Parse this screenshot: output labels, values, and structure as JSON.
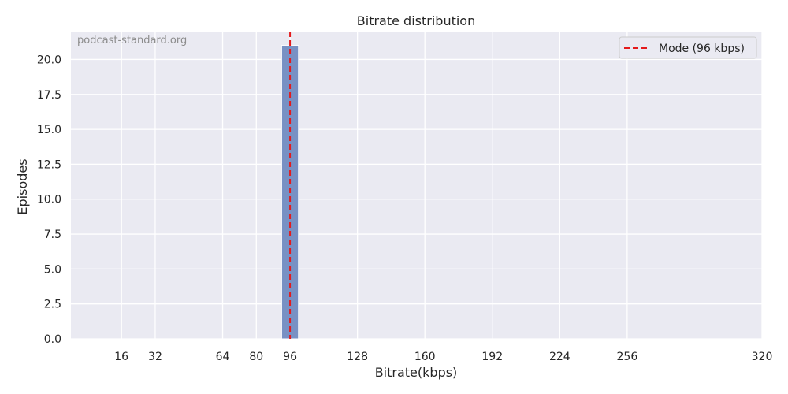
{
  "chart_data": {
    "type": "bar",
    "title": "Bitrate distribution",
    "xlabel": "Bitrate(kbps)",
    "ylabel": "Episodes",
    "watermark": "podcast-standard.org",
    "xlim": [
      -8,
      320
    ],
    "ylim": [
      0,
      22
    ],
    "xticks": [
      16,
      32,
      64,
      80,
      96,
      128,
      160,
      192,
      224,
      256,
      320
    ],
    "yticks": [
      "0.0",
      "2.5",
      "5.0",
      "7.5",
      "10.0",
      "12.5",
      "15.0",
      "17.5",
      "20.0"
    ],
    "bars": [
      {
        "x0": 92,
        "x1": 100,
        "value": 21
      }
    ],
    "mode_line": {
      "x": 96,
      "label": "Mode (96 kbps)",
      "color": "#e41a1c"
    },
    "bar_color": "#7891c4",
    "background_color": "#eaeaf2",
    "grid": true,
    "legend_position": "top-right"
  }
}
